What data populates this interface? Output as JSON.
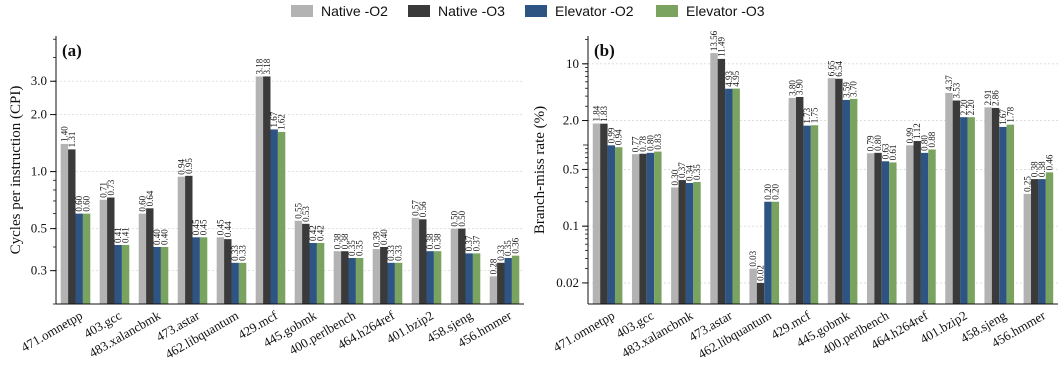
{
  "legend": [
    {
      "name": "Native -O2",
      "color": "#b3b3b3"
    },
    {
      "name": "Native -O3",
      "color": "#3a3a3a"
    },
    {
      "name": "Elevator -O2",
      "color": "#2e5483"
    },
    {
      "name": "Elevator -O3",
      "color": "#7aa35f"
    }
  ],
  "chart_data": [
    {
      "type": "bar",
      "panel_label": "(a)",
      "ylabel": "Cycles per instruction (CPI)",
      "yscale": "log",
      "ylim": [
        0.2,
        5.2
      ],
      "yticks": [
        0.3,
        0.5,
        1.0,
        2.0,
        3.0
      ],
      "ytick_labels": [
        "0.3",
        "0.5",
        "1.0",
        "2.0",
        "3.0"
      ],
      "grid": "horizontal",
      "categories": [
        "471.omnetpp",
        "403.gcc",
        "483.xalancbmk",
        "473.astar",
        "462.libquantum",
        "429.mcf",
        "445.gobmk",
        "400.perlbench",
        "464.h264ref",
        "401.bzip2",
        "458.sjeng",
        "456.hmmer"
      ],
      "series": [
        {
          "name": "Native -O2",
          "values": [
            1.4,
            0.71,
            0.6,
            0.94,
            0.45,
            3.18,
            0.55,
            0.38,
            0.39,
            0.57,
            0.5,
            0.28
          ]
        },
        {
          "name": "Native -O3",
          "values": [
            1.31,
            0.73,
            0.64,
            0.95,
            0.44,
            3.18,
            0.53,
            0.38,
            0.4,
            0.56,
            0.5,
            0.33
          ]
        },
        {
          "name": "Elevator -O2",
          "values": [
            0.6,
            0.41,
            0.4,
            0.45,
            0.33,
            1.67,
            0.42,
            0.35,
            0.33,
            0.38,
            0.37,
            0.35
          ]
        },
        {
          "name": "Elevator -O3",
          "values": [
            0.6,
            0.41,
            0.4,
            0.45,
            0.33,
            1.62,
            0.42,
            0.35,
            0.33,
            0.38,
            0.37,
            0.36
          ]
        }
      ],
      "labels": [
        [
          "1.40",
          "0.71",
          "0.60",
          "0.94",
          "0.45",
          "3.18",
          "0.55",
          "0.38",
          "0.39",
          "0.57",
          "0.50",
          "0.28"
        ],
        [
          "1.31",
          "0.73",
          "0.64",
          "0.95",
          "0.44",
          "3.18",
          "0.53",
          "0.38",
          "0.40",
          "0.56",
          "0.50",
          "0.33"
        ],
        [
          "0.60",
          "0.41",
          "0.40",
          "0.45",
          "0.33",
          "1.67",
          "0.42",
          "0.35",
          "0.33",
          "0.38",
          "0.37",
          "0.35"
        ],
        [
          "0.60",
          "0.41",
          "0.40",
          "0.45",
          "0.33",
          "1.62",
          "0.42",
          "0.35",
          "0.33",
          "0.38",
          "0.37",
          "0.36"
        ]
      ]
    },
    {
      "type": "bar",
      "panel_label": "(b)",
      "ylabel": "Branch-miss rate (%)",
      "yscale": "log",
      "ylim": [
        0.011,
        22
      ],
      "yticks": [
        0.02,
        0.1,
        0.5,
        2.0,
        10
      ],
      "ytick_labels": [
        "0.02",
        "0.1",
        "0.5",
        "2.0",
        "10"
      ],
      "grid": "horizontal",
      "categories": [
        "471.omnetpp",
        "403.gcc",
        "483.xalancbmk",
        "473.astar",
        "462.libquantum",
        "429.mcf",
        "445.gobmk",
        "400.perlbench",
        "464.h264ref",
        "401.bzip2",
        "458.sjeng",
        "456.hmmer"
      ],
      "series": [
        {
          "name": "Native -O2",
          "values": [
            1.84,
            0.77,
            0.3,
            13.56,
            0.03,
            3.8,
            6.65,
            0.79,
            0.99,
            4.37,
            2.91,
            0.25
          ]
        },
        {
          "name": "Native -O3",
          "values": [
            1.83,
            0.78,
            0.37,
            11.49,
            0.02,
            3.9,
            6.54,
            0.8,
            1.12,
            3.53,
            2.86,
            0.38
          ]
        },
        {
          "name": "Elevator -O2",
          "values": [
            0.99,
            0.8,
            0.34,
            4.93,
            0.2,
            1.73,
            3.59,
            0.63,
            0.8,
            2.2,
            1.67,
            0.38
          ]
        },
        {
          "name": "Elevator -O3",
          "values": [
            0.94,
            0.83,
            0.35,
            4.95,
            0.2,
            1.75,
            3.7,
            0.61,
            0.88,
            2.2,
            1.78,
            0.46
          ]
        }
      ],
      "labels": [
        [
          "1.84",
          "0.77",
          "0.30",
          "13.56",
          "0.03",
          "3.80",
          "6.65",
          "0.79",
          "0.99",
          "4.37",
          "2.91",
          "0.25"
        ],
        [
          "1.83",
          "0.78",
          "0.37",
          "11.49",
          "0.02",
          "3.90",
          "6.54",
          "0.80",
          "1.12",
          "3.53",
          "2.86",
          "0.38"
        ],
        [
          "0.99",
          "0.80",
          "0.34",
          "4.93",
          "0.20",
          "1.73",
          "3.59",
          "0.63",
          "0.80",
          "2.20",
          "1.67",
          "0.38"
        ],
        [
          "0.94",
          "0.83",
          "0.35",
          "4.95",
          "0.20",
          "1.75",
          "3.70",
          "0.61",
          "0.88",
          "2.20",
          "1.78",
          "0.46"
        ]
      ]
    }
  ]
}
